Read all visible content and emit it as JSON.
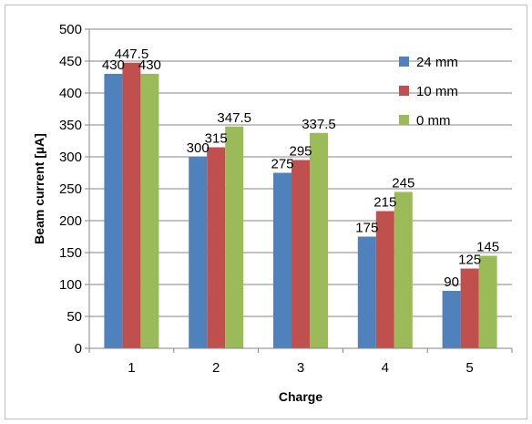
{
  "chart_data": {
    "type": "bar",
    "title": "",
    "xlabel": "Charge",
    "ylabel": "Beam current [µA]",
    "categories": [
      "1",
      "2",
      "3",
      "4",
      "5"
    ],
    "ylim": [
      0,
      500
    ],
    "yticks": [
      0,
      50,
      100,
      150,
      200,
      250,
      300,
      350,
      400,
      450,
      500
    ],
    "grid": true,
    "legend_position": "right",
    "series": [
      {
        "name": "24 mm",
        "color": "#4f81bd",
        "values": [
          430,
          300,
          275,
          175,
          90
        ]
      },
      {
        "name": "10 mm",
        "color": "#c0504d",
        "values": [
          447.5,
          315,
          295,
          215,
          125
        ]
      },
      {
        "name": "0 mm",
        "color": "#9bbb59",
        "values": [
          430,
          347.5,
          337.5,
          245,
          145
        ]
      }
    ]
  }
}
